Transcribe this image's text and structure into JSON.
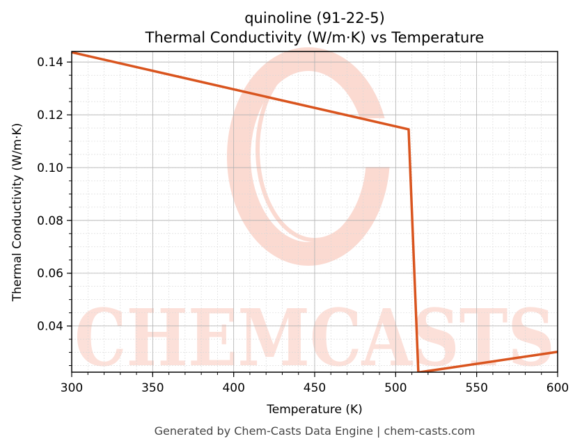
{
  "chart_data": {
    "type": "line",
    "title": "quinoline (91-22-5)",
    "subtitle": "Thermal Conductivity (W/m·K) vs Temperature",
    "xlabel": "Temperature (K)",
    "ylabel": "Thermal Conductivity (W/m·K)",
    "xlim": [
      300,
      600
    ],
    "ylim": [
      0.0225,
      0.144
    ],
    "xticks": [
      300,
      350,
      400,
      450,
      500,
      550,
      600
    ],
    "yticks": [
      0.04,
      0.06,
      0.08,
      0.1,
      0.12,
      0.14
    ],
    "grid": true,
    "legend": "none",
    "series": [
      {
        "color": "#d9541e",
        "x": [
          300,
          508,
          514,
          600
        ],
        "y": [
          0.1437,
          0.1145,
          0.0224,
          0.0302
        ]
      }
    ]
  },
  "watermark": {
    "text": "CHEMCASTS",
    "color": "#fbd6cd"
  },
  "footer": "Generated by Chem-Casts Data Engine | chem-casts.com"
}
